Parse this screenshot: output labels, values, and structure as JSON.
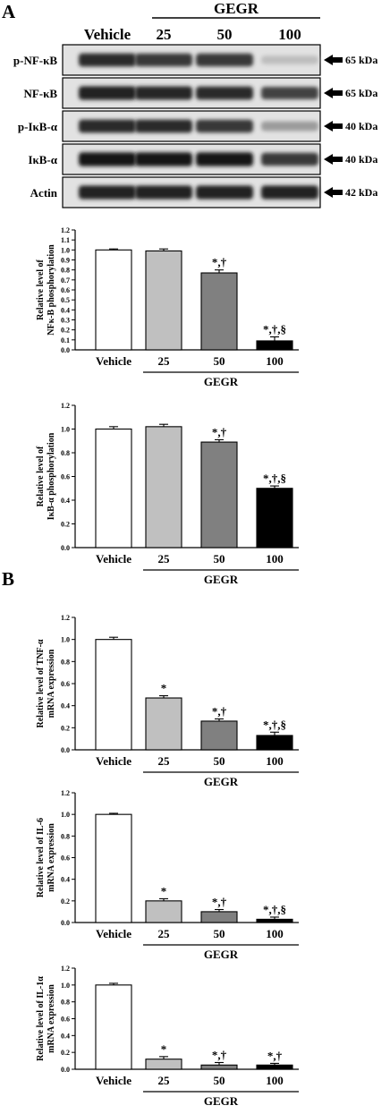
{
  "panels": {
    "a": "A",
    "b": "B"
  },
  "blot": {
    "vehicle_label": "Vehicle",
    "group_label": "GEGR",
    "doses": [
      "25",
      "50",
      "100"
    ],
    "rows": [
      {
        "label": "p-NF-κB",
        "kda": "65 kDa",
        "intensity": [
          0.85,
          0.8,
          0.8,
          0.2
        ]
      },
      {
        "label": "NF-κB",
        "kda": "65 kDa",
        "intensity": [
          0.9,
          0.88,
          0.85,
          0.75
        ]
      },
      {
        "label": "p-IκB-α",
        "kda": "40 kDa",
        "intensity": [
          0.85,
          0.85,
          0.8,
          0.35
        ]
      },
      {
        "label": "IκB-α",
        "kda": "40 kDa",
        "intensity": [
          0.95,
          0.95,
          0.95,
          0.8
        ]
      },
      {
        "label": "Actin",
        "kda": "42 kDa",
        "intensity": [
          0.9,
          0.9,
          0.9,
          0.9
        ]
      }
    ]
  },
  "colors": {
    "bars": [
      "#ffffff",
      "#c0c0c0",
      "#808080",
      "#000000"
    ]
  },
  "chart_data": [
    {
      "type": "bar",
      "categories": [
        "Vehicle",
        "25",
        "50",
        "100"
      ],
      "group_label": "GEGR",
      "ylabel_lines": [
        "Relative level of",
        "NFκ-B phosphorylation"
      ],
      "ylim": [
        0,
        1.2
      ],
      "yticks": [
        "0.0",
        "0.1",
        "0.2",
        "0.3",
        "0.4",
        "0.5",
        "0.6",
        "0.7",
        "0.8",
        "0.9",
        "1.0",
        "1.1",
        "1.2"
      ],
      "values": [
        1.0,
        0.99,
        0.77,
        0.09
      ],
      "errors": [
        0.01,
        0.02,
        0.03,
        0.04
      ],
      "annotations": [
        "",
        "",
        "*,†",
        "*,†,§"
      ]
    },
    {
      "type": "bar",
      "categories": [
        "Vehicle",
        "25",
        "50",
        "100"
      ],
      "group_label": "GEGR",
      "ylabel_lines": [
        "Relative level of",
        "IκB-α phosphorylation"
      ],
      "ylim": [
        0,
        1.2
      ],
      "yticks": [
        "0.0",
        "0.2",
        "0.4",
        "0.6",
        "0.8",
        "1.0",
        "1.2"
      ],
      "values": [
        1.0,
        1.02,
        0.89,
        0.5
      ],
      "errors": [
        0.02,
        0.02,
        0.02,
        0.02
      ],
      "annotations": [
        "",
        "",
        "*,†",
        "*,†,§"
      ]
    },
    {
      "type": "bar",
      "categories": [
        "Vehicle",
        "25",
        "50",
        "100"
      ],
      "group_label": "GEGR",
      "ylabel_lines": [
        "Relative level of TNF-α",
        "mRNA expression"
      ],
      "ylim": [
        0,
        1.2
      ],
      "yticks": [
        "0.0",
        "0.2",
        "0.4",
        "0.6",
        "0.8",
        "1.0",
        "1.2"
      ],
      "values": [
        1.0,
        0.47,
        0.26,
        0.13
      ],
      "errors": [
        0.02,
        0.02,
        0.02,
        0.03
      ],
      "annotations": [
        "",
        "*",
        "*,†",
        "*,†,§"
      ]
    },
    {
      "type": "bar",
      "categories": [
        "Vehicle",
        "25",
        "50",
        "100"
      ],
      "group_label": "GEGR",
      "ylabel_lines": [
        "Relative level of IL-6",
        "mRNA expression"
      ],
      "ylim": [
        0,
        1.2
      ],
      "yticks": [
        "0.0",
        "0.2",
        "0.4",
        "0.6",
        "0.8",
        "1.0",
        "1.2"
      ],
      "values": [
        1.0,
        0.2,
        0.1,
        0.03
      ],
      "errors": [
        0.01,
        0.02,
        0.02,
        0.02
      ],
      "annotations": [
        "",
        "*",
        "*,†",
        "*,†,§"
      ]
    },
    {
      "type": "bar",
      "categories": [
        "Vehicle",
        "25",
        "50",
        "100"
      ],
      "group_label": "GEGR",
      "ylabel_lines": [
        "Relative level of IL-1α",
        "mRNA expression"
      ],
      "ylim": [
        0,
        1.2
      ],
      "yticks": [
        "0.0",
        "0.2",
        "0.4",
        "0.6",
        "0.8",
        "1.0",
        "1.2"
      ],
      "values": [
        1.0,
        0.12,
        0.05,
        0.05
      ],
      "errors": [
        0.02,
        0.03,
        0.03,
        0.02
      ],
      "annotations": [
        "",
        "*",
        "*,†",
        "*,†"
      ]
    }
  ]
}
